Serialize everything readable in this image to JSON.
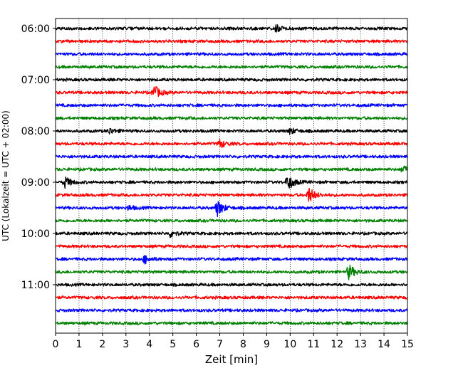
{
  "chart_data": {
    "type": "line",
    "title": "",
    "xlabel": "Zeit  [min]",
    "ylabel": "UTC (Lokalzeit = UTC + 02:00)",
    "xlim": [
      0,
      15
    ],
    "x_ticks": [
      0,
      1,
      2,
      3,
      4,
      5,
      6,
      7,
      8,
      9,
      10,
      11,
      12,
      13,
      14,
      15
    ],
    "y_tick_labels": [
      "06:00",
      "07:00",
      "08:00",
      "09:00",
      "10:00",
      "11:00"
    ],
    "y_tick_rows": [
      0,
      4,
      8,
      12,
      16,
      20
    ],
    "grid": "vertical dotted lines at each minute",
    "trace_interval_min": 15,
    "first_trace": "06:00",
    "trace_count": 24,
    "trace_colors": [
      "#000000",
      "#ff0000",
      "#0000ff",
      "#008000"
    ],
    "events": [
      {
        "trace": "09:00",
        "minute": 0.4,
        "amplitude": 0.42
      },
      {
        "trace": "09:00",
        "minute": 9.9,
        "amplitude": 0.6
      },
      {
        "trace": "09:15",
        "minute": 10.8,
        "amplitude": 0.6
      },
      {
        "trace": "09:30",
        "minute": 6.9,
        "amplitude": 0.62
      },
      {
        "trace": "07:15",
        "minute": 4.2,
        "amplitude": 0.55
      },
      {
        "trace": "10:45",
        "minute": 12.5,
        "amplitude": 0.55
      },
      {
        "trace": "08:15",
        "minute": 7.0,
        "amplitude": 0.3
      },
      {
        "trace": "10:30",
        "minute": 3.8,
        "amplitude": 0.3
      },
      {
        "trace": "08:45",
        "minute": 14.8,
        "amplitude": 0.25
      },
      {
        "trace": "10:00",
        "minute": 4.9,
        "amplitude": 0.25
      },
      {
        "trace": "06:00",
        "minute": 9.4,
        "amplitude": 0.22
      },
      {
        "trace": "08:00",
        "minute": 2.3,
        "amplitude": 0.22
      },
      {
        "trace": "08:00",
        "minute": 10.0,
        "amplitude": 0.22
      },
      {
        "trace": "09:30",
        "minute": 3.1,
        "amplitude": 0.18
      }
    ]
  }
}
